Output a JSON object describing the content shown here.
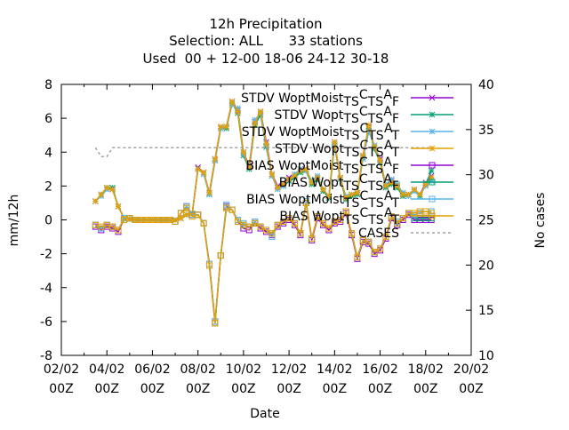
{
  "chart_data": {
    "type": "line",
    "title": [
      "12h Precipitation",
      "Selection: ALL      33 stations",
      "Used  00 + 12-00 18-06 24-12 30-18"
    ],
    "xlabel": "Date",
    "ylabel": "mm/12h",
    "y2label": "No cases",
    "xlim": [
      0,
      18
    ],
    "ylim": [
      -8,
      8
    ],
    "y2lim": [
      10,
      40
    ],
    "xticks": [
      {
        "value": 0,
        "line1": "02/02",
        "line2": "00Z"
      },
      {
        "value": 2,
        "line1": "04/02",
        "line2": "00Z"
      },
      {
        "value": 4,
        "line1": "06/02",
        "line2": "00Z"
      },
      {
        "value": 6,
        "line1": "08/02",
        "line2": "00Z"
      },
      {
        "value": 8,
        "line1": "10/02",
        "line2": "00Z"
      },
      {
        "value": 10,
        "line1": "12/02",
        "line2": "00Z"
      },
      {
        "value": 12,
        "line1": "14/02",
        "line2": "00Z"
      },
      {
        "value": 14,
        "line1": "16/02",
        "line2": "00Z"
      },
      {
        "value": 16,
        "line1": "18/02",
        "line2": "00Z"
      },
      {
        "value": 18,
        "line1": "20/02",
        "line2": "00Z"
      }
    ],
    "yticks": [
      "-8",
      "-6",
      "-4",
      "-2",
      "0",
      "2",
      "4",
      "6",
      "8"
    ],
    "y2ticks": [
      "10",
      "15",
      "20",
      "25",
      "30",
      "35",
      "40"
    ],
    "legend_position": "top-right",
    "x": [
      1.5,
      1.75,
      2,
      2.25,
      2.5,
      2.75,
      3,
      3.25,
      3.5,
      3.75,
      4,
      4.25,
      4.5,
      4.75,
      5,
      5.25,
      5.5,
      5.75,
      6,
      6.25,
      6.5,
      6.75,
      7,
      7.25,
      7.5,
      7.75,
      8,
      8.25,
      8.5,
      8.75,
      9,
      9.25,
      9.5,
      9.75,
      10,
      10.25,
      10.5,
      10.75,
      11,
      11.25,
      11.5,
      11.75,
      12,
      12.25,
      12.5,
      12.75,
      13,
      13.25,
      13.5,
      13.75,
      14,
      14.25,
      14.5,
      14.75,
      15,
      15.25,
      15.5,
      15.75,
      16,
      16.25
    ],
    "series": [
      {
        "name": "STDV WoptMoist_TSC_TSA_F",
        "color": "#9400d3",
        "marker": "x",
        "axis": "y",
        "dash": false,
        "values": [
          1.1,
          1.5,
          1.9,
          1.8,
          0.8,
          0.1,
          0.05,
          0.0,
          0.0,
          0.0,
          0.0,
          0.0,
          0.0,
          0.0,
          0.0,
          0.1,
          0.3,
          0.4,
          3.1,
          2.8,
          1.6,
          3.6,
          5.5,
          5.5,
          7.0,
          6.5,
          4.0,
          3.2,
          5.8,
          6.4,
          4.6,
          2.7,
          2.0,
          2.1,
          2.5,
          2.6,
          3.0,
          3.0,
          2.2,
          2.5,
          1.8,
          1.4,
          4.6,
          2.5,
          1.3,
          1.5,
          1.6,
          3.8,
          5.5,
          4.3,
          3.6,
          2.0,
          2.3,
          2.0,
          1.5,
          1.5,
          1.8,
          1.5,
          2.2,
          2.6
        ]
      },
      {
        "name": "STDV Wopt_TSC_TSA_F",
        "color": "#009e73",
        "marker": "asterisk",
        "axis": "y",
        "dash": false,
        "values": [
          1.1,
          1.5,
          1.9,
          1.9,
          0.8,
          0.1,
          0.05,
          0.0,
          0.0,
          0.0,
          0.0,
          0.0,
          0.0,
          0.0,
          0.0,
          0.1,
          0.3,
          0.4,
          3.0,
          2.8,
          1.5,
          3.5,
          5.4,
          5.4,
          6.9,
          6.3,
          3.8,
          3.0,
          5.6,
          6.2,
          4.3,
          2.6,
          1.9,
          2.0,
          2.3,
          2.5,
          2.8,
          2.9,
          2.1,
          2.4,
          1.7,
          1.3,
          4.4,
          2.4,
          1.2,
          1.4,
          1.5,
          3.7,
          5.4,
          4.2,
          3.4,
          1.9,
          2.1,
          1.9,
          1.4,
          1.5,
          1.7,
          1.4,
          2.1,
          2.9
        ]
      },
      {
        "name": "STDV WoptMoist_TSC_TSA_T",
        "color": "#56b4e9",
        "marker": "asterisk",
        "axis": "y",
        "dash": false,
        "values": [
          1.1,
          1.4,
          1.8,
          1.8,
          0.8,
          0.1,
          0.05,
          0.0,
          0.0,
          0.0,
          0.0,
          0.0,
          0.0,
          0.0,
          0.0,
          0.1,
          0.3,
          0.4,
          3.0,
          2.7,
          1.5,
          3.5,
          5.4,
          5.5,
          6.8,
          6.6,
          3.9,
          3.1,
          5.9,
          6.3,
          4.4,
          2.6,
          1.8,
          2.0,
          2.4,
          2.7,
          3.0,
          2.9,
          2.3,
          2.6,
          1.8,
          1.4,
          4.5,
          2.4,
          1.4,
          1.5,
          1.6,
          3.6,
          5.2,
          4.4,
          3.5,
          2.1,
          2.4,
          2.1,
          1.6,
          1.4,
          1.7,
          1.5,
          2.0,
          2.3
        ]
      },
      {
        "name": "STDV Wopt_TSC_TSA_T",
        "color": "#e69f00",
        "marker": "asterisk",
        "axis": "y",
        "dash": false,
        "values": [
          1.1,
          1.5,
          1.9,
          1.8,
          0.8,
          0.1,
          0.05,
          0.0,
          0.0,
          0.0,
          0.0,
          0.0,
          0.0,
          0.0,
          0.0,
          0.1,
          0.3,
          0.4,
          3.0,
          2.8,
          1.6,
          3.6,
          5.5,
          5.5,
          7.0,
          6.4,
          4.0,
          3.1,
          5.7,
          6.4,
          4.5,
          2.7,
          1.9,
          2.1,
          2.4,
          2.6,
          2.9,
          3.0,
          2.2,
          2.5,
          1.8,
          1.4,
          4.6,
          2.5,
          1.3,
          1.5,
          1.6,
          3.8,
          5.6,
          4.3,
          3.5,
          2.0,
          2.2,
          2.0,
          1.5,
          1.5,
          1.8,
          1.5,
          2.1,
          2.5
        ]
      },
      {
        "name": "BIAS WoptMoist_TSC_TSA_F",
        "color": "#9400d3",
        "marker": "square",
        "axis": "y",
        "dash": false,
        "values": [
          -0.4,
          -0.6,
          -0.4,
          -0.5,
          -0.7,
          0.0,
          0.1,
          0.0,
          0.0,
          0.0,
          0.0,
          0.0,
          0.0,
          0.0,
          -0.1,
          0.4,
          0.8,
          0.3,
          0.3,
          -0.2,
          -2.6,
          -6.0,
          -2.1,
          0.8,
          0.6,
          -0.1,
          -0.5,
          -0.6,
          -0.2,
          -0.5,
          -0.7,
          -0.9,
          -0.4,
          -0.2,
          0.0,
          -0.3,
          -0.9,
          1.0,
          -1.2,
          0.1,
          -0.3,
          -0.6,
          -0.2,
          -0.1,
          0.4,
          -0.9,
          -2.3,
          -1.3,
          -1.4,
          -2.0,
          -1.8,
          -1.1,
          0.1,
          -0.3,
          0.0,
          0.3,
          0.0,
          0.0,
          0.0,
          0.0
        ]
      },
      {
        "name": "BIAS Wopt_TSC_TSA_F",
        "color": "#009e73",
        "marker": "square",
        "axis": "y",
        "dash": false,
        "values": [
          -0.3,
          -0.5,
          -0.3,
          -0.4,
          -0.6,
          0.0,
          0.1,
          0.0,
          0.0,
          0.0,
          0.0,
          0.0,
          0.0,
          0.0,
          -0.1,
          0.4,
          0.7,
          0.3,
          0.3,
          -0.2,
          -2.7,
          -6.1,
          -2.1,
          0.7,
          0.6,
          -0.1,
          -0.3,
          -0.4,
          -0.2,
          -0.4,
          -0.6,
          -0.8,
          -0.3,
          -0.1,
          0.1,
          -0.2,
          -0.8,
          1.0,
          -1.1,
          0.2,
          -0.2,
          -0.5,
          -0.1,
          0.0,
          0.5,
          -0.8,
          -2.2,
          -1.2,
          -1.3,
          -1.9,
          -1.7,
          -1.0,
          0.2,
          -0.2,
          0.1,
          0.4,
          0.1,
          0.1,
          0.1,
          0.1
        ]
      },
      {
        "name": "BIAS WoptMoist_TSC_TSA_T",
        "color": "#56b4e9",
        "marker": "square",
        "axis": "y",
        "dash": false,
        "values": [
          -0.3,
          -0.5,
          -0.3,
          -0.4,
          -0.6,
          0.1,
          0.1,
          0.0,
          0.0,
          0.0,
          0.0,
          0.0,
          0.0,
          0.0,
          -0.1,
          0.4,
          0.8,
          0.3,
          0.3,
          -0.2,
          -2.6,
          -6.0,
          -2.1,
          0.9,
          0.6,
          0.0,
          -0.2,
          -0.4,
          -0.1,
          -0.4,
          -0.6,
          -1.0,
          -0.3,
          -0.1,
          0.1,
          -0.2,
          -0.8,
          1.1,
          -1.1,
          0.2,
          -0.2,
          -0.5,
          -0.1,
          0.0,
          0.5,
          -0.8,
          -2.2,
          -1.2,
          -1.3,
          -1.9,
          -1.7,
          -1.0,
          0.2,
          -0.1,
          0.1,
          0.4,
          0.3,
          0.4,
          0.5,
          0.5
        ]
      },
      {
        "name": "BIAS Wopt_TSC_TSA_T",
        "color": "#e69f00",
        "marker": "square",
        "axis": "y",
        "dash": false,
        "values": [
          -0.3,
          -0.4,
          -0.3,
          -0.4,
          -0.6,
          0.0,
          0.1,
          0.0,
          0.0,
          0.0,
          0.0,
          0.0,
          0.0,
          0.0,
          -0.1,
          0.4,
          0.7,
          0.2,
          0.3,
          -0.2,
          -2.7,
          -6.1,
          -2.1,
          0.7,
          0.6,
          -0.1,
          -0.3,
          -0.4,
          -0.2,
          -0.4,
          -0.6,
          -0.8,
          -0.3,
          -0.1,
          0.1,
          -0.2,
          -0.8,
          1.0,
          -1.1,
          0.2,
          -0.2,
          -0.5,
          -0.1,
          0.0,
          0.5,
          -0.8,
          -2.2,
          -1.2,
          -1.3,
          -1.9,
          -1.7,
          -1.0,
          0.2,
          -0.2,
          0.1,
          0.4,
          0.4,
          0.5,
          0.5,
          0.4
        ]
      },
      {
        "name": "CASES",
        "color": "#a0a0a0",
        "marker": "none",
        "axis": "y2",
        "dash": true,
        "values": [
          33,
          32,
          32,
          33,
          33,
          33,
          33,
          33,
          33,
          33,
          33,
          33,
          33,
          33,
          33,
          33,
          33,
          33,
          33,
          33,
          33,
          33,
          33,
          33,
          33,
          33,
          33,
          33,
          33,
          33,
          33,
          33,
          33,
          33,
          33,
          33,
          33,
          33,
          33,
          33,
          33,
          33,
          33,
          33,
          33,
          33,
          33,
          33,
          33,
          33,
          33,
          33,
          33,
          33,
          33,
          33,
          33,
          33,
          33,
          33
        ]
      }
    ],
    "legend": [
      {
        "label": "STDV WoptMoist",
        "sub1": "TS",
        "mid": "C",
        "sub2": "TS",
        "mid2": "A",
        "sub3": "F"
      },
      {
        "label": "STDV Wopt",
        "sub1": "TS",
        "mid": "C",
        "sub2": "TS",
        "mid2": "A",
        "sub3": "F"
      },
      {
        "label": "STDV WoptMoist",
        "sub1": "TS",
        "mid": "C",
        "sub2": "TS",
        "mid2": "A",
        "sub3": "T"
      },
      {
        "label": "STDV Wopt",
        "sub1": "TS",
        "mid": "C",
        "sub2": "TS",
        "mid2": "A",
        "sub3": "T"
      },
      {
        "label": "BIAS WoptMoist",
        "sub1": "TS",
        "mid": "C",
        "sub2": "TS",
        "mid2": "A",
        "sub3": "F"
      },
      {
        "label": "BIAS Wopt",
        "sub1": "TS",
        "mid": "C",
        "sub2": "TS",
        "mid2": "A",
        "sub3": "F"
      },
      {
        "label": "BIAS WoptMoist",
        "sub1": "TS",
        "mid": "C",
        "sub2": "TS",
        "mid2": "A",
        "sub3": "T"
      },
      {
        "label": "BIAS Wopt",
        "sub1": "TS",
        "mid": "C",
        "sub2": "TS",
        "mid2": "A",
        "sub3": "T"
      },
      {
        "label": "CASES",
        "sub1": "",
        "mid": "",
        "sub2": "",
        "mid2": "",
        "sub3": ""
      }
    ]
  }
}
